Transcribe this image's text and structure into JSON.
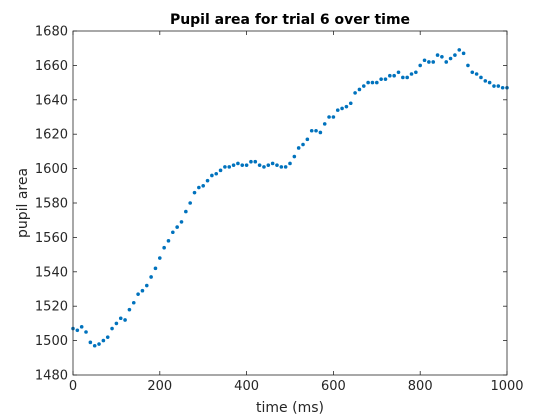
{
  "chart_data": {
    "type": "scatter",
    "title": "Pupil area for trial 6 over time",
    "xlabel": "time (ms)",
    "ylabel": "pupil area",
    "xlim": [
      0,
      1000
    ],
    "ylim": [
      1480,
      1680
    ],
    "xticks": [
      0,
      200,
      400,
      600,
      800,
      1000
    ],
    "yticks": [
      1480,
      1500,
      1520,
      1540,
      1560,
      1580,
      1600,
      1620,
      1640,
      1660,
      1680
    ],
    "grid": false,
    "marker_color": "#0072BD",
    "x": [
      0,
      10,
      20,
      30,
      40,
      50,
      60,
      70,
      80,
      90,
      100,
      110,
      120,
      130,
      140,
      150,
      160,
      170,
      180,
      190,
      200,
      210,
      220,
      230,
      240,
      250,
      260,
      270,
      280,
      290,
      300,
      310,
      320,
      330,
      340,
      350,
      360,
      370,
      380,
      390,
      400,
      410,
      420,
      430,
      440,
      450,
      460,
      470,
      480,
      490,
      500,
      510,
      520,
      530,
      540,
      550,
      560,
      570,
      580,
      590,
      600,
      610,
      620,
      630,
      640,
      650,
      660,
      670,
      680,
      690,
      700,
      710,
      720,
      730,
      740,
      750,
      760,
      770,
      780,
      790,
      800,
      810,
      820,
      830,
      840,
      850,
      860,
      870,
      880,
      890,
      900,
      910,
      920,
      930,
      940,
      950,
      960,
      970,
      980,
      990,
      1000
    ],
    "y": [
      1507,
      1506,
      1508,
      1505,
      1499,
      1497,
      1498,
      1500,
      1502,
      1507,
      1510,
      1513,
      1512,
      1518,
      1522,
      1527,
      1529,
      1532,
      1537,
      1542,
      1548,
      1554,
      1558,
      1563,
      1566,
      1569,
      1575,
      1580,
      1586,
      1589,
      1590,
      1593,
      1596,
      1597,
      1599,
      1601,
      1601,
      1602,
      1603,
      1602,
      1602,
      1604,
      1604,
      1602,
      1601,
      1602,
      1603,
      1602,
      1601,
      1601,
      1603,
      1607,
      1612,
      1614,
      1617,
      1622,
      1622,
      1621,
      1626,
      1630,
      1630,
      1634,
      1635,
      1636,
      1638,
      1644,
      1646,
      1648,
      1650,
      1650,
      1650,
      1652,
      1652,
      1654,
      1654,
      1656,
      1653,
      1653,
      1655,
      1656,
      1660,
      1663,
      1662,
      1662,
      1666,
      1665,
      1662,
      1664,
      1666,
      1669,
      1667,
      1660,
      1656,
      1655,
      1653,
      1651,
      1650,
      1648,
      1648,
      1647,
      1647
    ]
  }
}
